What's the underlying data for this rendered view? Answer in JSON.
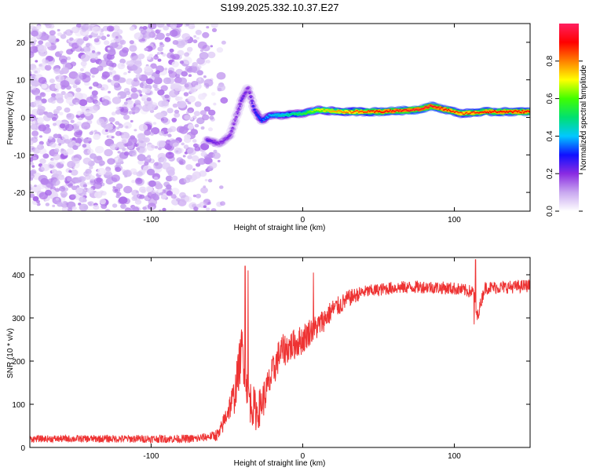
{
  "title": "S199.2025.332.10.37.E27",
  "chart_data": [
    {
      "type": "heatmap",
      "name": "spectrogram",
      "xlabel": "Height of straight line (km)",
      "ylabel": "Frequency (Hz)",
      "xlim": [
        -180,
        150
      ],
      "ylim": [
        -25,
        25
      ],
      "xticks": [
        -100,
        0,
        100
      ],
      "xtick_labels": [
        "-100",
        "0",
        "100"
      ],
      "yticks": [
        -20,
        -10,
        0,
        10,
        20
      ],
      "ytick_labels": [
        "-20",
        "-10",
        "0",
        "10",
        "20"
      ],
      "colorbar": {
        "label": "Normalized spectral amplitude",
        "range": [
          0,
          1
        ],
        "ticks": [
          0,
          0.2,
          0.4,
          0.6,
          0.8
        ],
        "tick_labels": [
          "0.0",
          "0.2",
          "0.4",
          "0.6",
          "0.8"
        ],
        "colors": [
          "#ffffff",
          "#c9a8f0",
          "#8a2be2",
          "#1010ff",
          "#00c8ff",
          "#00e070",
          "#40ff00",
          "#ffff00",
          "#ff8000",
          "#ff0000",
          "#ff2060"
        ]
      },
      "noise_region_x": [
        -180,
        -60
      ],
      "noise_amplitude": 0.15,
      "ridge": [
        {
          "x": -63,
          "y": -6,
          "amp": 0.25
        },
        {
          "x": -55,
          "y": -7,
          "amp": 0.2
        },
        {
          "x": -48,
          "y": -5,
          "amp": 0.22
        },
        {
          "x": -44,
          "y": 0,
          "amp": 0.2
        },
        {
          "x": -40,
          "y": 5,
          "amp": 0.25
        },
        {
          "x": -36,
          "y": 8,
          "amp": 0.2
        },
        {
          "x": -32,
          "y": 2,
          "amp": 0.3
        },
        {
          "x": -27,
          "y": -1,
          "amp": 0.35
        },
        {
          "x": -22,
          "y": 0.5,
          "amp": 0.4
        },
        {
          "x": -15,
          "y": 0.5,
          "amp": 0.45
        },
        {
          "x": -8,
          "y": 0.8,
          "amp": 0.5
        },
        {
          "x": 0,
          "y": 1,
          "amp": 0.55
        },
        {
          "x": 10,
          "y": 2,
          "amp": 0.7
        },
        {
          "x": 25,
          "y": 1.5,
          "amp": 0.8
        },
        {
          "x": 50,
          "y": 1.5,
          "amp": 0.9
        },
        {
          "x": 75,
          "y": 2,
          "amp": 0.95
        },
        {
          "x": 85,
          "y": 3,
          "amp": 0.95
        },
        {
          "x": 95,
          "y": 2,
          "amp": 0.9
        },
        {
          "x": 105,
          "y": 1,
          "amp": 0.85
        },
        {
          "x": 120,
          "y": 1.5,
          "amp": 0.9
        },
        {
          "x": 150,
          "y": 1.5,
          "amp": 0.9
        }
      ]
    },
    {
      "type": "line",
      "name": "snr",
      "xlabel": "Height of straight line (km)",
      "ylabel": "SNR (10 * v/v)",
      "xlim": [
        -180,
        150
      ],
      "ylim": [
        0,
        440
      ],
      "xticks": [
        -100,
        0,
        100
      ],
      "xtick_labels": [
        "-100",
        "0",
        "100"
      ],
      "yticks": [
        0,
        100,
        200,
        300,
        400
      ],
      "ytick_labels": [
        "0",
        "100",
        "200",
        "300",
        "400"
      ],
      "color": "#ee3333",
      "trend": {
        "x": [
          -180,
          -70,
          -55,
          -50,
          -45,
          -40,
          -35,
          -30,
          -25,
          -20,
          -15,
          -10,
          -5,
          0,
          5,
          10,
          15,
          20,
          25,
          30,
          40,
          50,
          60,
          80,
          100,
          113,
          115,
          120,
          140,
          150
        ],
        "y": [
          20,
          20,
          30,
          80,
          120,
          230,
          110,
          80,
          120,
          170,
          220,
          230,
          240,
          250,
          270,
          280,
          300,
          320,
          330,
          345,
          360,
          365,
          370,
          372,
          368,
          360,
          300,
          370,
          372,
          375
        ]
      },
      "noise": {
        "x": [
          -180,
          -60,
          -50,
          -40,
          -30,
          -20,
          0,
          20,
          40,
          100,
          150
        ],
        "y": [
          8,
          10,
          25,
          60,
          45,
          40,
          35,
          25,
          15,
          15,
          15
        ]
      },
      "spikes": [
        {
          "x": -38,
          "y": 420
        },
        {
          "x": -36,
          "y": 410
        },
        {
          "x": 7,
          "y": 405
        },
        {
          "x": 114,
          "y": 435
        },
        {
          "x": 113,
          "y": 285
        }
      ]
    }
  ]
}
